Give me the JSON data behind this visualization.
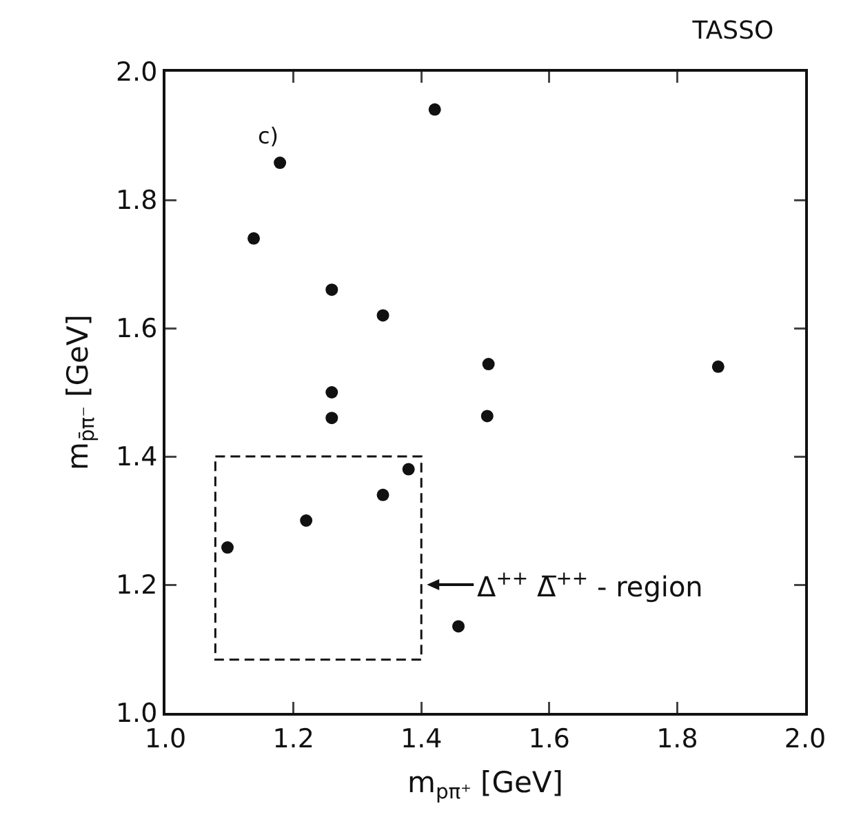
{
  "chart_data": {
    "type": "scatter",
    "title": "TASSO",
    "xlabel": "m$_{pπ⁺}$ [GeV]",
    "ylabel": "m$_{p̄π⁻}$ [GeV]",
    "annotations": [
      "c)",
      "Δ$^{++}$ Δ̅$^{++}$ - region"
    ],
    "x": [
      1.179,
      1.421,
      1.138,
      1.26,
      1.34,
      1.505,
      1.864,
      1.26,
      1.26,
      1.503,
      1.097,
      1.22,
      1.34,
      1.38,
      1.458
    ],
    "series": [
      {
        "color": "#111111",
        "values": [
          1.858,
          1.941,
          1.74,
          1.66,
          1.62,
          1.544,
          1.54,
          1.5,
          1.46,
          1.463,
          1.258,
          1.3,
          1.34,
          1.38,
          1.135
        ]
      }
    ],
    "marker": "circle",
    "xlim": [
      1.0,
      2.0
    ],
    "xticks": [
      {
        "value": 1.0,
        "label": "1.0"
      },
      1.2,
      1.4,
      1.6,
      1.8,
      {
        "value": 2.0,
        "label": "2.0"
      }
    ],
    "ylim": [
      1.0,
      2.0
    ],
    "yticks": [
      {
        "value": 1.0,
        "label": "1.0"
      },
      1.2,
      1.4,
      1.6,
      1.8,
      {
        "value": 2.0,
        "label": "2.0"
      }
    ],
    "tick_labels": "xy"
  }
}
